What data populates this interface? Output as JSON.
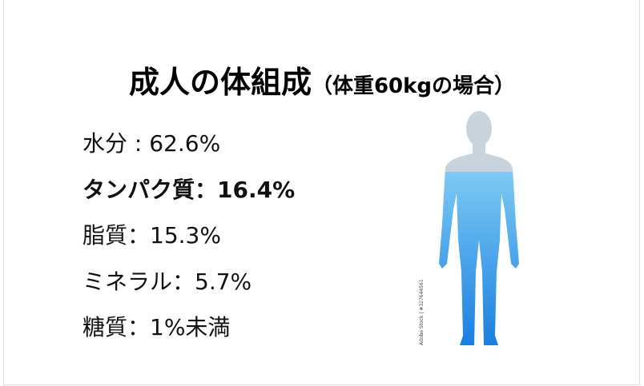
{
  "header": {
    "title": "成人の体組成",
    "subtitle": "（体重60kgの場合）"
  },
  "items": [
    {
      "text": "水分 : 62.6%",
      "bold": false
    },
    {
      "text": "タンパク質：16.4%",
      "bold": true
    },
    {
      "text": "脂質：15.3%",
      "bold": false
    },
    {
      "text": "ミネラル：5.7%",
      "bold": false
    },
    {
      "text": "糖質：1%未満",
      "bold": false
    }
  ],
  "image": {
    "credit": "Adobe Stock | #327644561"
  }
}
